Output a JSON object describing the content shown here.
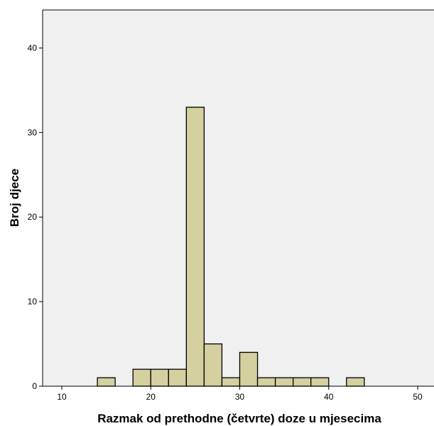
{
  "chart_data": {
    "type": "bar",
    "subtype": "histogram",
    "title": "",
    "xlabel": "Razmak od prethodne (četvrte) doze u mjesecima",
    "ylabel": "Broj djece",
    "xlim": [
      8,
      52
    ],
    "ylim": [
      0,
      44.5
    ],
    "x_ticks": [
      10,
      20,
      30,
      40,
      50
    ],
    "y_ticks": [
      0,
      10,
      20,
      30,
      40
    ],
    "bin_width": 2,
    "bins": [
      {
        "start": 14,
        "end": 16,
        "count": 1
      },
      {
        "start": 18,
        "end": 20,
        "count": 2
      },
      {
        "start": 20,
        "end": 22,
        "count": 2
      },
      {
        "start": 22,
        "end": 24,
        "count": 2
      },
      {
        "start": 24,
        "end": 26,
        "count": 33
      },
      {
        "start": 26,
        "end": 28,
        "count": 5
      },
      {
        "start": 28,
        "end": 30,
        "count": 1
      },
      {
        "start": 30,
        "end": 32,
        "count": 4
      },
      {
        "start": 32,
        "end": 34,
        "count": 1
      },
      {
        "start": 34,
        "end": 36,
        "count": 1
      },
      {
        "start": 36,
        "end": 38,
        "count": 1
      },
      {
        "start": 38,
        "end": 40,
        "count": 1
      },
      {
        "start": 42,
        "end": 44,
        "count": 1
      }
    ],
    "grid": false,
    "legend": "none",
    "colors": {
      "bar_fill": "#d4d0a0",
      "bar_stroke": "#000000",
      "plot_background": "#f0f0f0"
    }
  }
}
